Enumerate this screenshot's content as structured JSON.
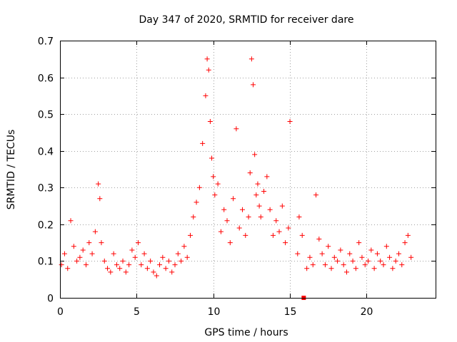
{
  "chart_data": {
    "type": "scatter",
    "title": "Day 347 of 2020, SRMTID for receiver dare",
    "xlabel": "GPS time / hours",
    "ylabel": "SRMTID / TECUs",
    "xlim": [
      0,
      24.5
    ],
    "ylim": [
      0,
      0.7
    ],
    "xticks": [
      0,
      5,
      10,
      15,
      20
    ],
    "xtick_labels": [
      "0",
      "5",
      "10",
      "15",
      "20"
    ],
    "yticks": [
      0,
      0.1,
      0.2,
      0.3,
      0.4,
      0.5,
      0.6,
      0.7
    ],
    "ytick_labels": [
      "0",
      "0.1",
      "0.2",
      "0.3",
      "0.4",
      "0.5",
      "0.6",
      "0.7"
    ],
    "grid": true,
    "marker": "plus",
    "color": "#ff0000",
    "outlier_marker": {
      "x": 15.9,
      "y": 0.0,
      "shape": "square"
    },
    "series": [
      {
        "name": "SRMTID",
        "x": [
          0.1,
          0.3,
          0.5,
          0.7,
          0.9,
          1.1,
          1.3,
          1.5,
          1.7,
          1.9,
          2.1,
          2.3,
          2.5,
          2.6,
          2.7,
          2.9,
          3.1,
          3.3,
          3.5,
          3.7,
          3.9,
          4.1,
          4.3,
          4.5,
          4.7,
          4.9,
          5.1,
          5.3,
          5.5,
          5.7,
          5.9,
          6.1,
          6.3,
          6.5,
          6.7,
          6.9,
          7.1,
          7.3,
          7.5,
          7.7,
          7.9,
          8.1,
          8.3,
          8.5,
          8.7,
          8.9,
          9.1,
          9.3,
          9.5,
          9.6,
          9.7,
          9.8,
          9.9,
          10.0,
          10.1,
          10.3,
          10.5,
          10.7,
          10.9,
          11.1,
          11.3,
          11.5,
          11.7,
          11.9,
          12.1,
          12.3,
          12.4,
          12.5,
          12.6,
          12.7,
          12.8,
          12.9,
          13.0,
          13.1,
          13.3,
          13.5,
          13.7,
          13.9,
          14.1,
          14.3,
          14.5,
          14.7,
          14.9,
          15.0,
          15.5,
          15.6,
          15.8,
          16.1,
          16.3,
          16.5,
          16.7,
          16.9,
          17.1,
          17.3,
          17.5,
          17.7,
          17.9,
          18.1,
          18.3,
          18.5,
          18.7,
          18.9,
          19.1,
          19.3,
          19.5,
          19.7,
          19.9,
          20.1,
          20.3,
          20.5,
          20.7,
          20.9,
          21.1,
          21.3,
          21.5,
          21.7,
          21.9,
          22.1,
          22.3,
          22.5,
          22.7,
          22.9
        ],
        "y": [
          0.09,
          0.12,
          0.08,
          0.21,
          0.14,
          0.1,
          0.11,
          0.13,
          0.09,
          0.15,
          0.12,
          0.18,
          0.31,
          0.27,
          0.15,
          0.1,
          0.08,
          0.07,
          0.12,
          0.09,
          0.08,
          0.1,
          0.07,
          0.09,
          0.13,
          0.11,
          0.15,
          0.09,
          0.12,
          0.08,
          0.1,
          0.07,
          0.06,
          0.09,
          0.11,
          0.08,
          0.1,
          0.07,
          0.09,
          0.12,
          0.1,
          0.14,
          0.11,
          0.17,
          0.22,
          0.26,
          0.3,
          0.42,
          0.55,
          0.65,
          0.62,
          0.48,
          0.38,
          0.33,
          0.28,
          0.31,
          0.18,
          0.24,
          0.21,
          0.15,
          0.27,
          0.46,
          0.19,
          0.24,
          0.17,
          0.22,
          0.34,
          0.65,
          0.58,
          0.39,
          0.28,
          0.31,
          0.25,
          0.22,
          0.29,
          0.33,
          0.24,
          0.17,
          0.21,
          0.18,
          0.25,
          0.15,
          0.19,
          0.48,
          0.12,
          0.22,
          0.17,
          0.08,
          0.11,
          0.09,
          0.28,
          0.16,
          0.12,
          0.09,
          0.14,
          0.08,
          0.11,
          0.1,
          0.13,
          0.09,
          0.07,
          0.12,
          0.1,
          0.08,
          0.15,
          0.11,
          0.09,
          0.1,
          0.13,
          0.08,
          0.12,
          0.1,
          0.09,
          0.14,
          0.11,
          0.08,
          0.1,
          0.12,
          0.09,
          0.15,
          0.17,
          0.11
        ]
      }
    ]
  }
}
